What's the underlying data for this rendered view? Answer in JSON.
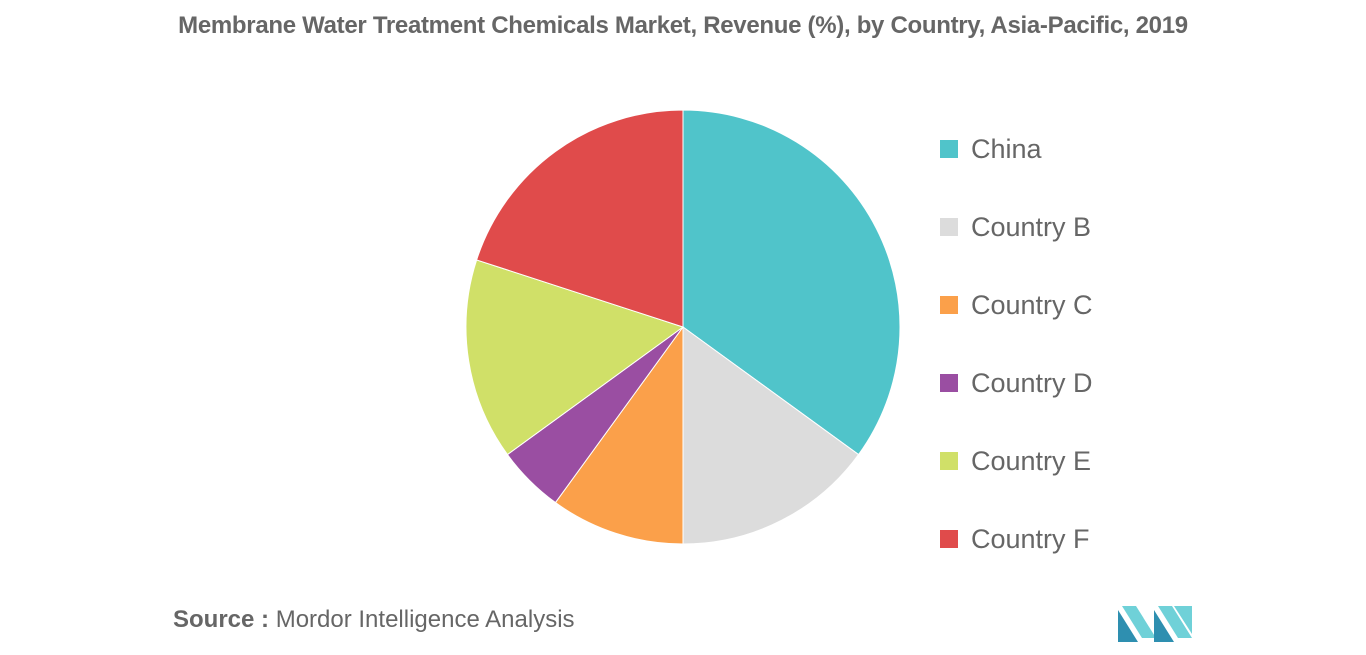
{
  "chart_data": {
    "type": "pie",
    "title": "Membrane Water Treatment Chemicals Market, Revenue (%), by Country, Asia-Pacific, 2019",
    "categories": [
      "China",
      "Country B",
      "Country C",
      "Country D",
      "Country E",
      "Country F"
    ],
    "values": [
      35,
      15,
      10,
      5,
      15,
      20
    ],
    "colors": [
      "#50C4CA",
      "#DCDCDC",
      "#FBA04A",
      "#9A4EA2",
      "#D0E068",
      "#E04B4B"
    ],
    "legend": "right",
    "start_angle_deg": 0,
    "direction": "clockwise"
  },
  "source": {
    "label": "Source :",
    "text": "Mordor Intelligence Analysis"
  },
  "logo": {
    "icon": "mordor-intelligence-logo-icon",
    "colors": [
      "#2E8FB0",
      "#6FD1D8"
    ]
  }
}
